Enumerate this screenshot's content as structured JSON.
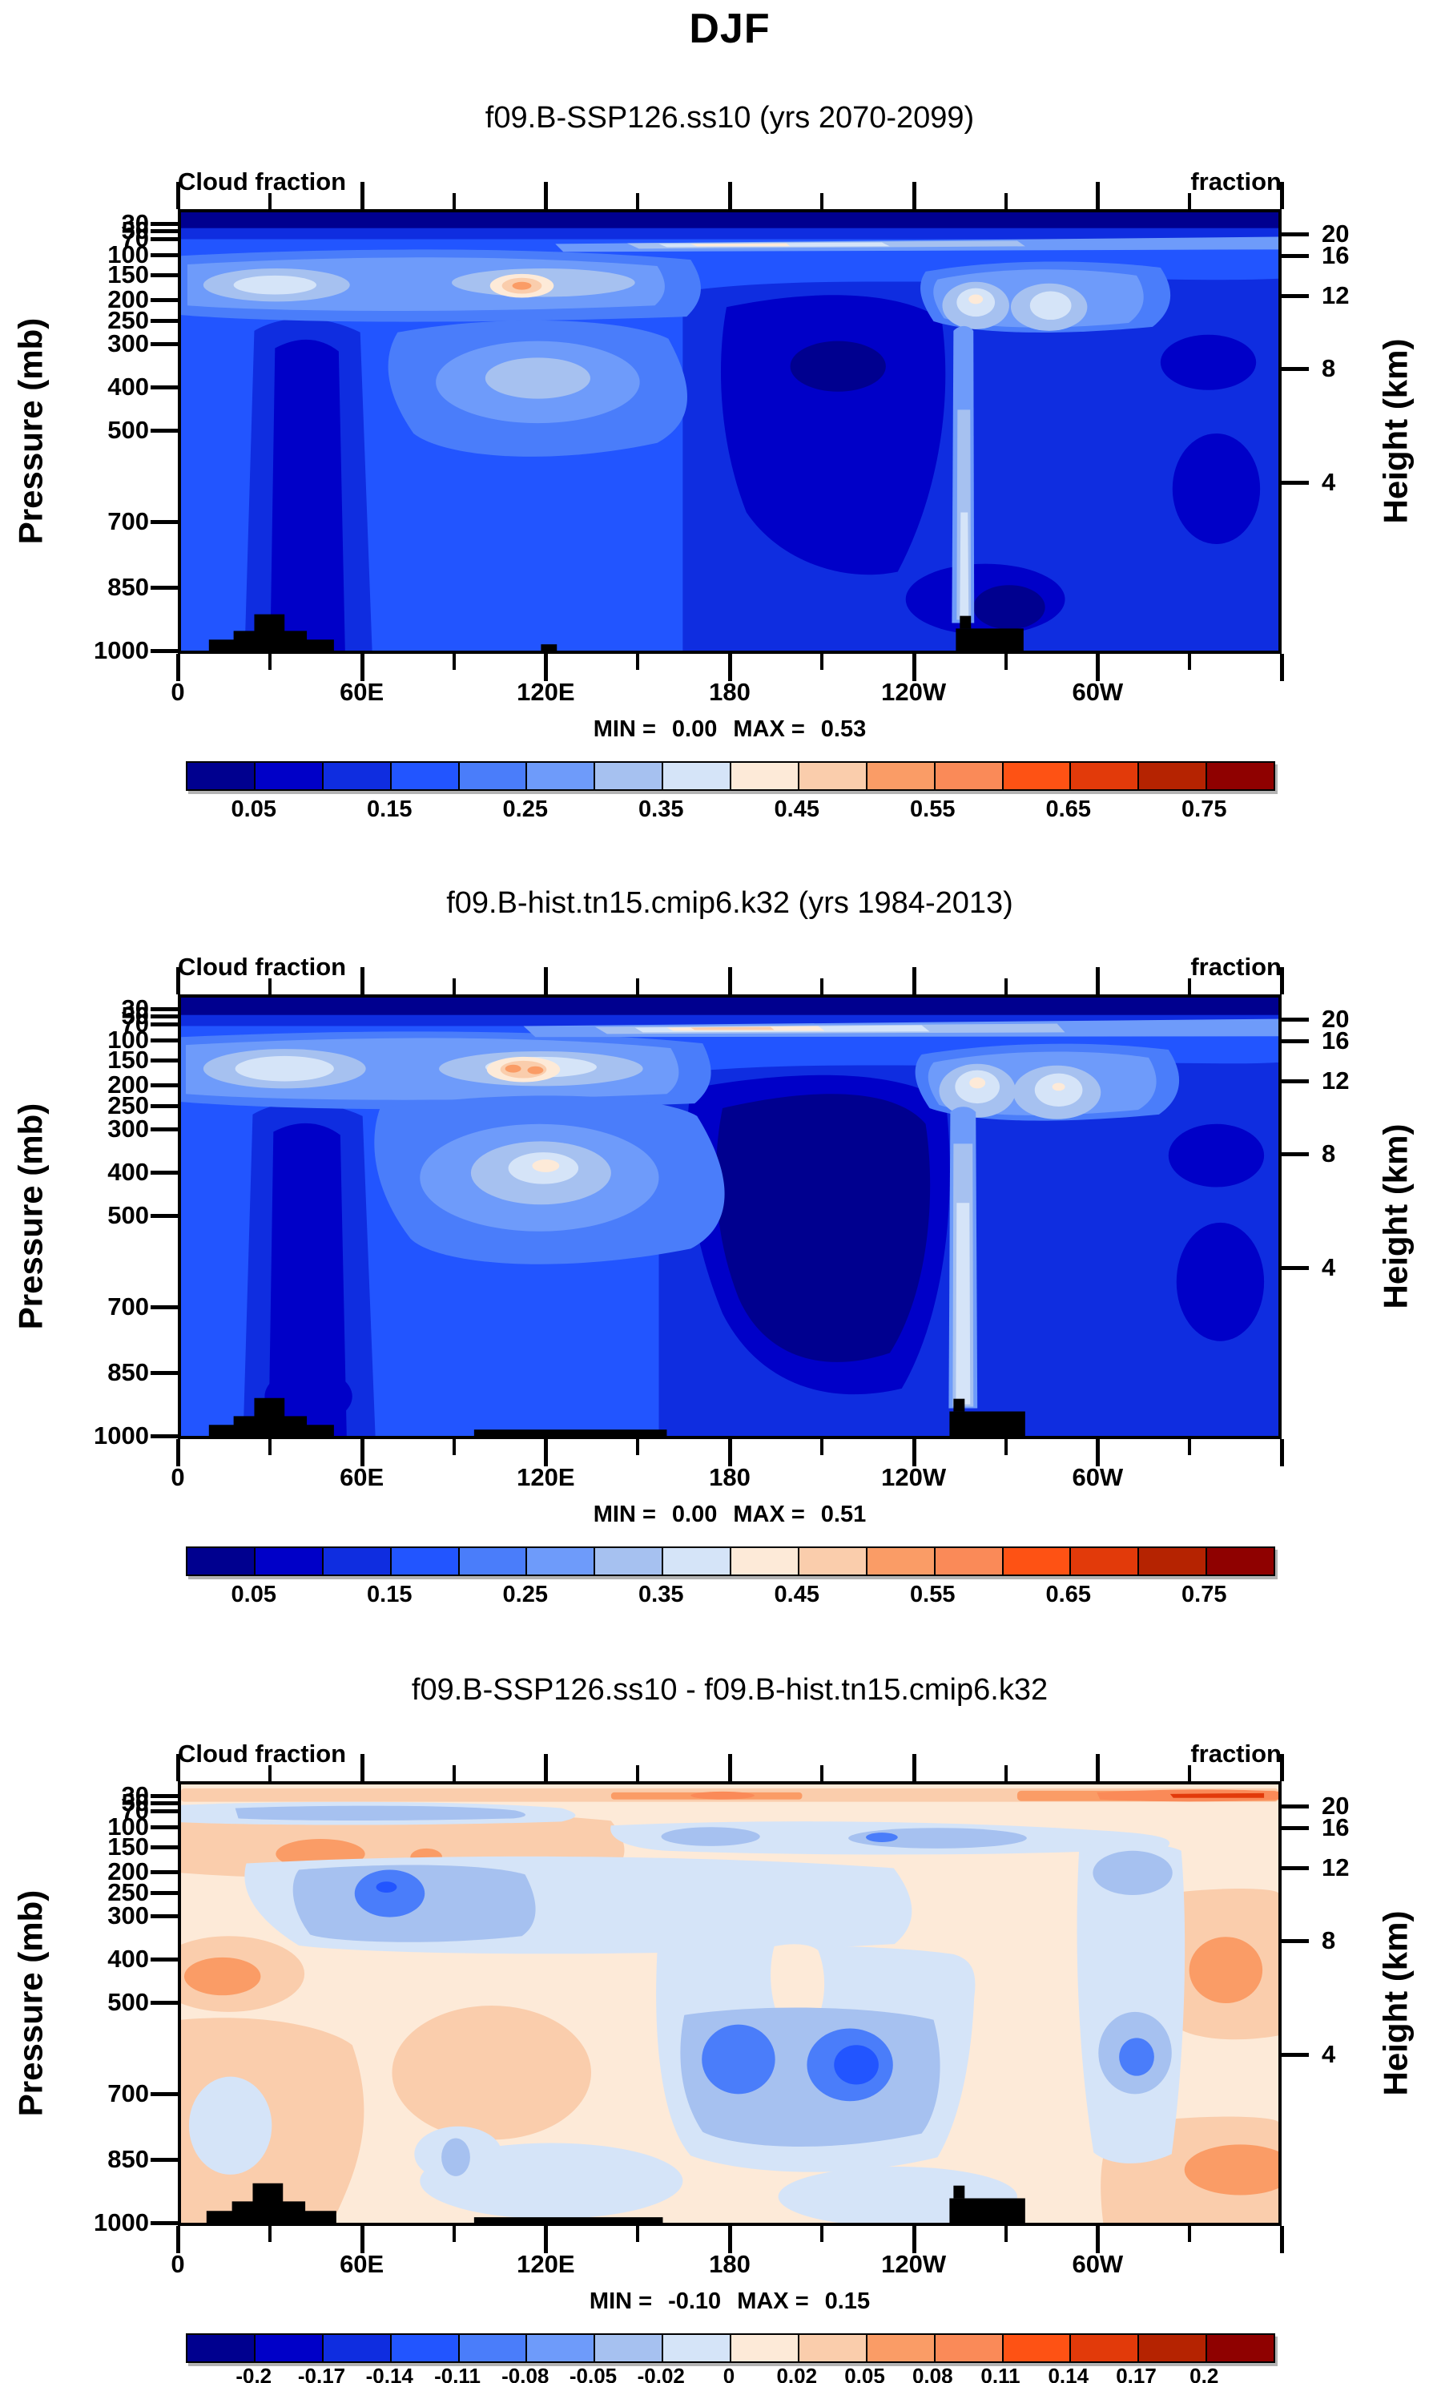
{
  "title": "DJF",
  "field_label_left": "Cloud fraction",
  "field_label_right": "fraction",
  "axis": {
    "pressure_title": "Pressure (mb)",
    "height_title": "Height (km)",
    "pressure_ticks": [
      {
        "label": "30",
        "f": 0.032
      },
      {
        "label": "50",
        "f": 0.049
      },
      {
        "label": "70",
        "f": 0.066
      },
      {
        "label": "100",
        "f": 0.103
      },
      {
        "label": "150",
        "f": 0.148
      },
      {
        "label": "200",
        "f": 0.204
      },
      {
        "label": "250",
        "f": 0.25
      },
      {
        "label": "300",
        "f": 0.303
      },
      {
        "label": "400",
        "f": 0.4
      },
      {
        "label": "500",
        "f": 0.497
      },
      {
        "label": "700",
        "f": 0.703
      },
      {
        "label": "850",
        "f": 0.85
      },
      {
        "label": "1000",
        "f": 0.993
      }
    ],
    "height_ticks": [
      {
        "label": "20",
        "f": 0.056
      },
      {
        "label": "16",
        "f": 0.104
      },
      {
        "label": "12",
        "f": 0.195
      },
      {
        "label": "8",
        "f": 0.358
      },
      {
        "label": "4",
        "f": 0.614
      }
    ],
    "lon_major_ticks_deg": [
      0,
      60,
      120,
      180,
      240,
      300,
      360
    ],
    "lon_minor_ticks_deg": [
      30,
      90,
      150,
      210,
      270,
      330
    ],
    "lon_labels": [
      {
        "label": "0",
        "deg": 0
      },
      {
        "label": "60E",
        "deg": 60
      },
      {
        "label": "120E",
        "deg": 120
      },
      {
        "label": "180",
        "deg": 180
      },
      {
        "label": "120W",
        "deg": 240
      },
      {
        "label": "60W",
        "deg": 300
      }
    ]
  },
  "palette": [
    "#00008F",
    "#0000C8",
    "#0F2DE0",
    "#2255FF",
    "#4A7DFA",
    "#6E9BFA",
    "#A6C1F0",
    "#D5E4F8",
    "#FDEAD8",
    "#FACDAC",
    "#FA9C66",
    "#FA8A58",
    "#FE5214",
    "#E23A0A",
    "#B52301",
    "#8F0100"
  ],
  "terrain_color": "#000000",
  "panels": [
    {
      "subtitle": "f09.B-SSP126.ss10 (yrs 2070-2099)",
      "min_label": "MIN =",
      "min_value": "0.00",
      "max_label": "MAX =",
      "max_value": "0.53",
      "colorbar": {
        "labels": [
          "0.05",
          "0.15",
          "0.25",
          "0.35",
          "0.45",
          "0.55",
          "0.65",
          "0.75"
        ],
        "label_boundaries": [
          1,
          3,
          5,
          7,
          9,
          11,
          13,
          15
        ]
      }
    },
    {
      "subtitle": "f09.B-hist.tn15.cmip6.k32 (yrs 1984-2013)",
      "min_label": "MIN =",
      "min_value": "0.00",
      "max_label": "MAX =",
      "max_value": "0.51",
      "colorbar": {
        "labels": [
          "0.05",
          "0.15",
          "0.25",
          "0.35",
          "0.45",
          "0.55",
          "0.65",
          "0.75"
        ],
        "label_boundaries": [
          1,
          3,
          5,
          7,
          9,
          11,
          13,
          15
        ]
      }
    },
    {
      "subtitle": "f09.B-SSP126.ss10 - f09.B-hist.tn15.cmip6.k32",
      "min_label": "MIN =",
      "min_value": "-0.10",
      "max_label": "MAX =",
      "max_value": "0.15",
      "colorbar": {
        "labels": [
          "-0.2",
          "-0.17",
          "-0.14",
          "-0.11",
          "-0.08",
          "-0.05",
          "-0.02",
          "0",
          "0.02",
          "0.05",
          "0.08",
          "0.11",
          "0.14",
          "0.17",
          "0.2"
        ],
        "label_boundaries": [
          1,
          2,
          3,
          4,
          5,
          6,
          7,
          8,
          9,
          10,
          11,
          12,
          13,
          14,
          15
        ]
      }
    }
  ],
  "chart_data": [
    {
      "type": "filled_contour",
      "season": "DJF",
      "title": "f09.B-SSP126.ss10 (yrs 2070-2099)",
      "variable": "Cloud fraction",
      "units": "fraction",
      "x_axis": {
        "label": "longitude",
        "range_deg": [
          0,
          360
        ],
        "tick_labels": [
          "0",
          "60E",
          "120E",
          "180",
          "120W",
          "60W"
        ],
        "minor_tick_step_deg": 30
      },
      "y_axis_left": {
        "label": "Pressure (mb)",
        "ticks": [
          30,
          50,
          70,
          100,
          150,
          200,
          250,
          300,
          400,
          500,
          700,
          850,
          1000
        ],
        "top_value": 30,
        "bottom_value": 1000
      },
      "y_axis_right": {
        "label": "Height (km)",
        "ticks": [
          20,
          16,
          12,
          8,
          4
        ]
      },
      "stats": {
        "min": 0.0,
        "max": 0.53
      },
      "contour_levels": [
        0,
        0.05,
        0.1,
        0.15,
        0.2,
        0.25,
        0.3,
        0.35,
        0.4,
        0.45,
        0.5,
        0.55,
        0.6,
        0.65,
        0.7,
        0.75,
        0.8
      ],
      "colorbar_tick_values": [
        0.05,
        0.15,
        0.25,
        0.35,
        0.45,
        0.55,
        0.65,
        0.75
      ],
      "legend_position": "bottom",
      "grid": false,
      "features": [
        "dark minimum band (<0.05) above ~70 mb across all longitudes",
        "bright tropopause maxima (~0.35-0.45) near 150-250 mb over 0-60E and over 100W-60W (twin cells)",
        "warm-colored maximum (~0.45-0.5) near 110E at 200 mb",
        "pale mid-level maximum (~0.25-0.35) near 60E-160E at 300-500 mb",
        "deep minimum (<0.05) around 200E-230E at 300-400 mb",
        "narrow bright column near 100W from 200 mb to surface",
        "black terrain mask near 0-40E, ~120E and ~100W-85W at the surface"
      ]
    },
    {
      "type": "filled_contour",
      "season": "DJF",
      "title": "f09.B-hist.tn15.cmip6.k32 (yrs 1984-2013)",
      "variable": "Cloud fraction",
      "units": "fraction",
      "x_axis": {
        "label": "longitude",
        "range_deg": [
          0,
          360
        ],
        "tick_labels": [
          "0",
          "60E",
          "120E",
          "180",
          "120W",
          "60W"
        ],
        "minor_tick_step_deg": 30
      },
      "y_axis_left": {
        "label": "Pressure (mb)",
        "ticks": [
          30,
          50,
          70,
          100,
          150,
          200,
          250,
          300,
          400,
          500,
          700,
          850,
          1000
        ],
        "top_value": 30,
        "bottom_value": 1000
      },
      "y_axis_right": {
        "label": "Height (km)",
        "ticks": [
          20,
          16,
          12,
          8,
          4
        ]
      },
      "stats": {
        "min": 0.0,
        "max": 0.51
      },
      "contour_levels": [
        0,
        0.05,
        0.1,
        0.15,
        0.2,
        0.25,
        0.3,
        0.35,
        0.4,
        0.45,
        0.5,
        0.55,
        0.6,
        0.65,
        0.7,
        0.75,
        0.8
      ],
      "colorbar_tick_values": [
        0.05,
        0.15,
        0.25,
        0.35,
        0.45,
        0.55,
        0.65,
        0.75
      ],
      "legend_position": "bottom",
      "grid": false,
      "features": [
        "stronger tropopause maxima than SSP panel, near 150-250 mb over 0-60E and 100W-60W",
        "warm-colored maximum (~0.45-0.5) near 115E at 200 mb",
        "large mid-level maximum (~0.3-0.45) near 60E-160E at 300-500 mb",
        "extensive deep minimum (<0.05) over ~160E-130W from 200 to 850 mb",
        "narrow bright column near 100W from 200 mb to surface",
        "black terrain mask near 0-40E, 95E-160E strip and ~100W-85W at the surface"
      ]
    },
    {
      "type": "filled_contour",
      "season": "DJF",
      "title": "f09.B-SSP126.ss10 - f09.B-hist.tn15.cmip6.k32",
      "variable": "Cloud fraction difference",
      "units": "fraction",
      "x_axis": {
        "label": "longitude",
        "range_deg": [
          0,
          360
        ],
        "tick_labels": [
          "0",
          "60E",
          "120E",
          "180",
          "120W",
          "60W"
        ],
        "minor_tick_step_deg": 30
      },
      "y_axis_left": {
        "label": "Pressure (mb)",
        "ticks": [
          30,
          50,
          70,
          100,
          150,
          200,
          250,
          300,
          400,
          500,
          700,
          850,
          1000
        ],
        "top_value": 30,
        "bottom_value": 1000
      },
      "y_axis_right": {
        "label": "Height (km)",
        "ticks": [
          20,
          16,
          12,
          8,
          4
        ]
      },
      "stats": {
        "min": -0.1,
        "max": 0.15
      },
      "contour_levels": [
        -0.2,
        -0.17,
        -0.14,
        -0.11,
        -0.08,
        -0.05,
        -0.02,
        0,
        0.02,
        0.05,
        0.08,
        0.11,
        0.14,
        0.17,
        0.2
      ],
      "colorbar_tick_values": [
        -0.2,
        -0.17,
        -0.14,
        -0.11,
        -0.08,
        -0.05,
        -0.02,
        0,
        0.02,
        0.05,
        0.08,
        0.11,
        0.14,
        0.17,
        0.2
      ],
      "legend_position": "bottom",
      "grid": false,
      "features": [
        "weak positive differences (0 to 0.05) over most of the section",
        "orange positive streak (up to >0.14) near 50 mb, strongest over 120W-0",
        "positive patch (~0.05-0.08) near 0-60E at 200-250 mb",
        "negative band (-0.02 to -0.08) near the tropical tropopause 100-150 mb over 140E-60W",
        "negative region (-0.02 to -0.11) mid-troposphere around 160E-120W at 400-700 mb",
        "negative column (-0.02 to -0.08) near 60W from 250 to 700 mb",
        "black terrain mask near 0-40E, 95E-160E strip and ~100W-85W at the surface"
      ]
    }
  ]
}
